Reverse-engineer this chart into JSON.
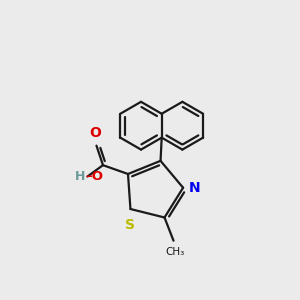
{
  "background_color": "#ebebeb",
  "bond_color": "#1a1a1a",
  "bond_width": 1.6,
  "N_color": "#0000ee",
  "S_color": "#bbbb00",
  "O_color": "#dd0000",
  "H_color": "#6a9a9a",
  "figsize": [
    3.0,
    3.0
  ],
  "dpi": 100,
  "xlim": [
    0.5,
    9.5
  ],
  "ylim": [
    1.0,
    9.5
  ]
}
